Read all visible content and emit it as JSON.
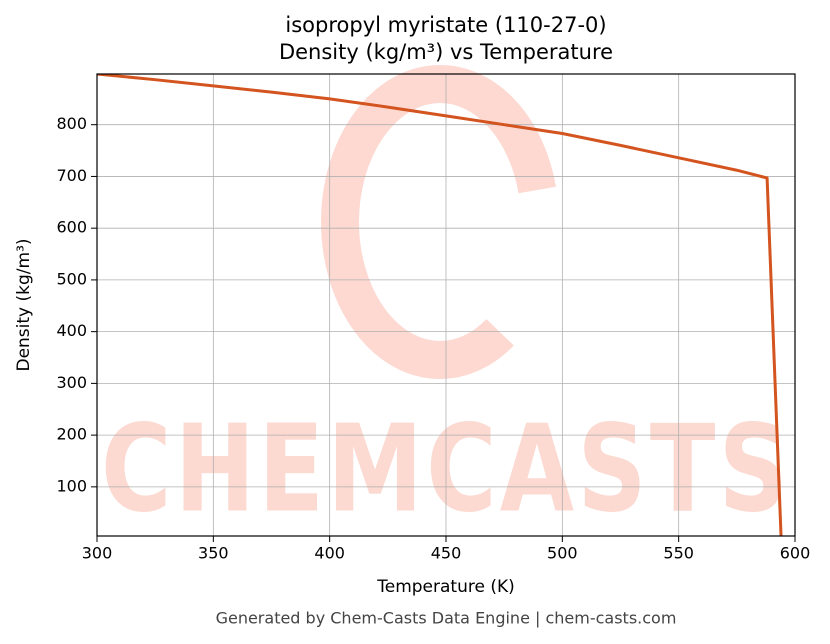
{
  "chart_data": {
    "type": "line",
    "title": "isopropyl myristate (110-27-0)",
    "subtitle": "Density (kg/m³) vs Temperature",
    "x_label": "Temperature (K)",
    "y_label": "Density (kg/m³)",
    "watermark": "CHEMCASTS",
    "footer": "Generated by Chem-Casts Data Engine | chem-casts.com",
    "x": [
      300,
      325,
      350,
      375,
      400,
      425,
      450,
      475,
      500,
      525,
      550,
      575,
      588,
      594
    ],
    "series": [
      {
        "name": "Density",
        "color": "#d4541f",
        "values": [
          898,
          887,
          875,
          863,
          850,
          834,
          817,
          800,
          783,
          760,
          736,
          712,
          697,
          5
        ]
      }
    ],
    "xlim": [
      300,
      600
    ],
    "ylim": [
      5,
      898
    ],
    "xticks": [
      300,
      350,
      400,
      450,
      500,
      550,
      600
    ],
    "yticks": [
      100,
      200,
      300,
      400,
      500,
      600,
      700,
      800
    ],
    "grid": true
  }
}
